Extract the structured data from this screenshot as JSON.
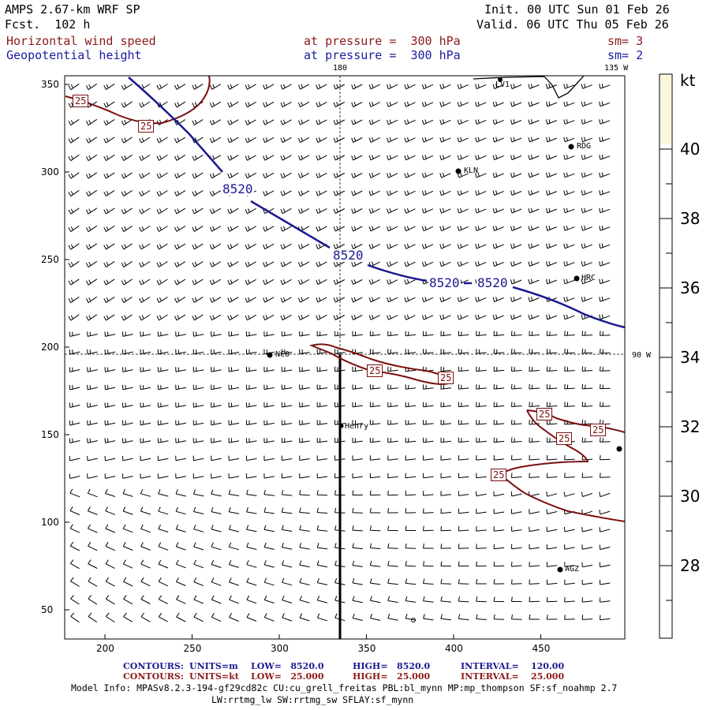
{
  "header": {
    "model": "AMPS 2.67-km WRF SP",
    "fcst": "Fcst.  102 h",
    "init": "Init. 00 UTC Sun 01 Feb 26",
    "valid": "Valid. 06 UTC Thu 05 Feb 26",
    "field1_name": "Horizontal wind speed",
    "field1_level": "at pressure =  300 hPa",
    "field1_sm": "sm= 3",
    "field2_name": "Geopotential height",
    "field2_level": "at pressure =  300 hPa",
    "field2_sm": "sm= 2"
  },
  "map": {
    "lon_label_180": "180",
    "lon_label_135w": "135 W",
    "lon_label_90w": "90 W",
    "x_ticks": [
      "200",
      "250",
      "300",
      "350",
      "400",
      "450"
    ],
    "y_ticks": [
      "350",
      "300",
      "250",
      "200",
      "150",
      "100",
      "50"
    ],
    "height_contour_labels": [
      "8520",
      "8520",
      "8520",
      "8520"
    ],
    "wind_contour_labels": [
      "25",
      "25",
      "25",
      "25",
      "25",
      "25",
      "25",
      "25"
    ],
    "stations": [
      "LV1",
      "RDG",
      "KLN",
      "HRC",
      "NCO",
      "Henry",
      "AGZ"
    ]
  },
  "colorbar": {
    "unit": "kt",
    "labels": [
      "40",
      "38",
      "36",
      "34",
      "32",
      "30",
      "28"
    ],
    "fill_color": "#fbf6dc"
  },
  "footer": {
    "c1_label": "CONTOURS:",
    "c1_units": "UNITS=m",
    "c1_low": "LOW=   8520.0",
    "c1_high": "HIGH=   8520.0",
    "c1_int": "INTERVAL=    120.00",
    "c2_label": "CONTOURS:",
    "c2_units": "UNITS=kt",
    "c2_low": "LOW=   25.000",
    "c2_high": "HIGH=   25.000",
    "c2_int": "INTERVAL=    25.000",
    "model_info": "Model Info: MPASv8.2.3-194-gf29cd82c CU:cu_grell_freitas PBL:bl_mynn MP:mp_thompson SF:sf_noahmp 2.7",
    "model_info2": "LW:rrtmg_lw SW:rrtmg_sw SFLAY:sf_mynn"
  },
  "colors": {
    "height": "#1a1a90",
    "wind": "#7a1010",
    "barb": "#000000"
  }
}
